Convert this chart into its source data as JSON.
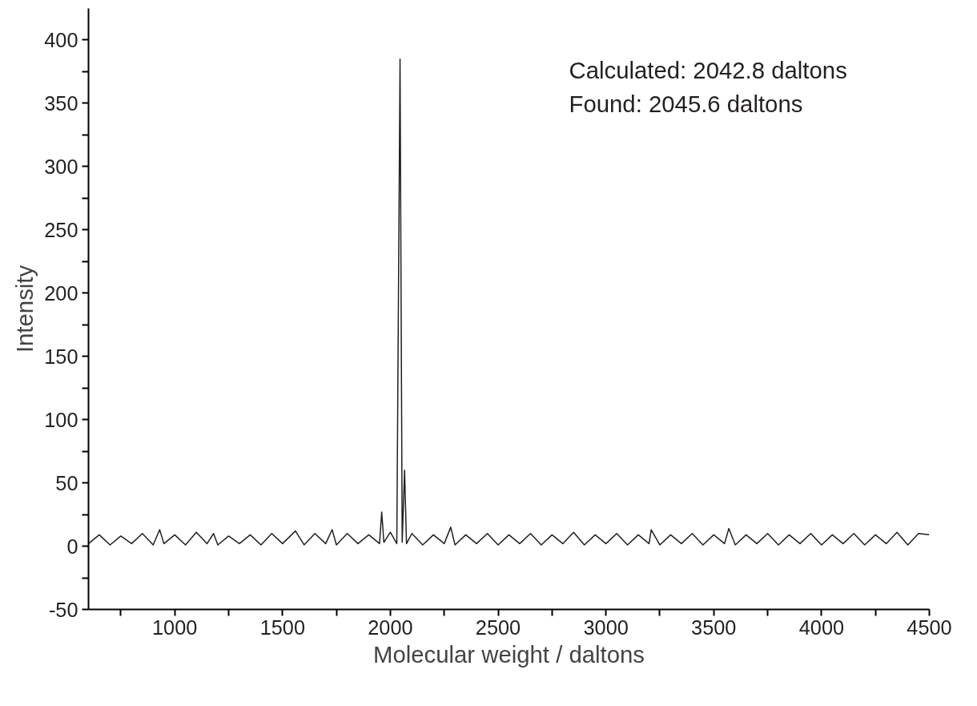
{
  "chart_data": {
    "type": "line",
    "xlabel": "Molecular weight / daltons",
    "ylabel": "Intensity",
    "annotations": [
      "Calculated: 2042.8 daltons",
      "Found: 2045.6 daltons"
    ],
    "x": [
      600,
      650,
      700,
      750,
      800,
      850,
      900,
      930,
      950,
      1000,
      1050,
      1100,
      1150,
      1180,
      1200,
      1250,
      1300,
      1350,
      1400,
      1450,
      1500,
      1560,
      1600,
      1650,
      1700,
      1730,
      1750,
      1800,
      1850,
      1900,
      1950,
      1960,
      1970,
      2000,
      2030,
      2045,
      2055,
      2066,
      2075,
      2100,
      2150,
      2200,
      2250,
      2280,
      2300,
      2350,
      2400,
      2450,
      2500,
      2550,
      2600,
      2650,
      2700,
      2750,
      2800,
      2850,
      2900,
      2950,
      3000,
      3050,
      3100,
      3150,
      3200,
      3210,
      3250,
      3300,
      3350,
      3400,
      3450,
      3500,
      3550,
      3570,
      3600,
      3650,
      3700,
      3750,
      3800,
      3850,
      3900,
      3950,
      4000,
      4050,
      4100,
      4150,
      4200,
      4250,
      4300,
      4350,
      4400,
      4450,
      4500
    ],
    "series": [
      {
        "color": "#231f20",
        "values": [
          2,
          9,
          1,
          8,
          2,
          10,
          1,
          13,
          2,
          9,
          1,
          11,
          2,
          10,
          1,
          8,
          2,
          9,
          1,
          10,
          2,
          12,
          1,
          10,
          2,
          13,
          1,
          10,
          2,
          9,
          2,
          27,
          3,
          11,
          2,
          385,
          3,
          60,
          2,
          10,
          1,
          9,
          2,
          15,
          1,
          9,
          2,
          10,
          1,
          9,
          2,
          10,
          1,
          9,
          2,
          11,
          1,
          9,
          2,
          10,
          1,
          9,
          2,
          13,
          1,
          9,
          2,
          10,
          1,
          9,
          2,
          14,
          1,
          9,
          2,
          10,
          1,
          9,
          2,
          10,
          1,
          9,
          2,
          10,
          1,
          9,
          2,
          11,
          1,
          10,
          9
        ]
      }
    ],
    "xlim": [
      600,
      4500
    ],
    "ylim": [
      -50,
      425
    ],
    "xticks": [
      {
        "value": 750,
        "label": null
      },
      1000,
      {
        "value": 1250,
        "label": null
      },
      1500,
      {
        "value": 1750,
        "label": null
      },
      2000,
      {
        "value": 2250,
        "label": null
      },
      2500,
      {
        "value": 2750,
        "label": null
      },
      3000,
      {
        "value": 3250,
        "label": null
      },
      3500,
      {
        "value": 3750,
        "label": null
      },
      4000,
      {
        "value": 4250,
        "label": null
      },
      4500
    ],
    "yticks": [
      -50,
      {
        "value": -25,
        "label": null
      },
      0,
      {
        "value": 25,
        "label": null
      },
      50,
      {
        "value": 75,
        "label": null
      },
      100,
      {
        "value": 125,
        "label": null
      },
      150,
      {
        "value": 175,
        "label": null
      },
      200,
      {
        "value": 225,
        "label": null
      },
      250,
      {
        "value": 275,
        "label": null
      },
      300,
      {
        "value": 325,
        "label": null
      },
      350,
      {
        "value": 375,
        "label": null
      },
      400
    ],
    "grid": false,
    "marker": "none",
    "line_style": "solid"
  }
}
